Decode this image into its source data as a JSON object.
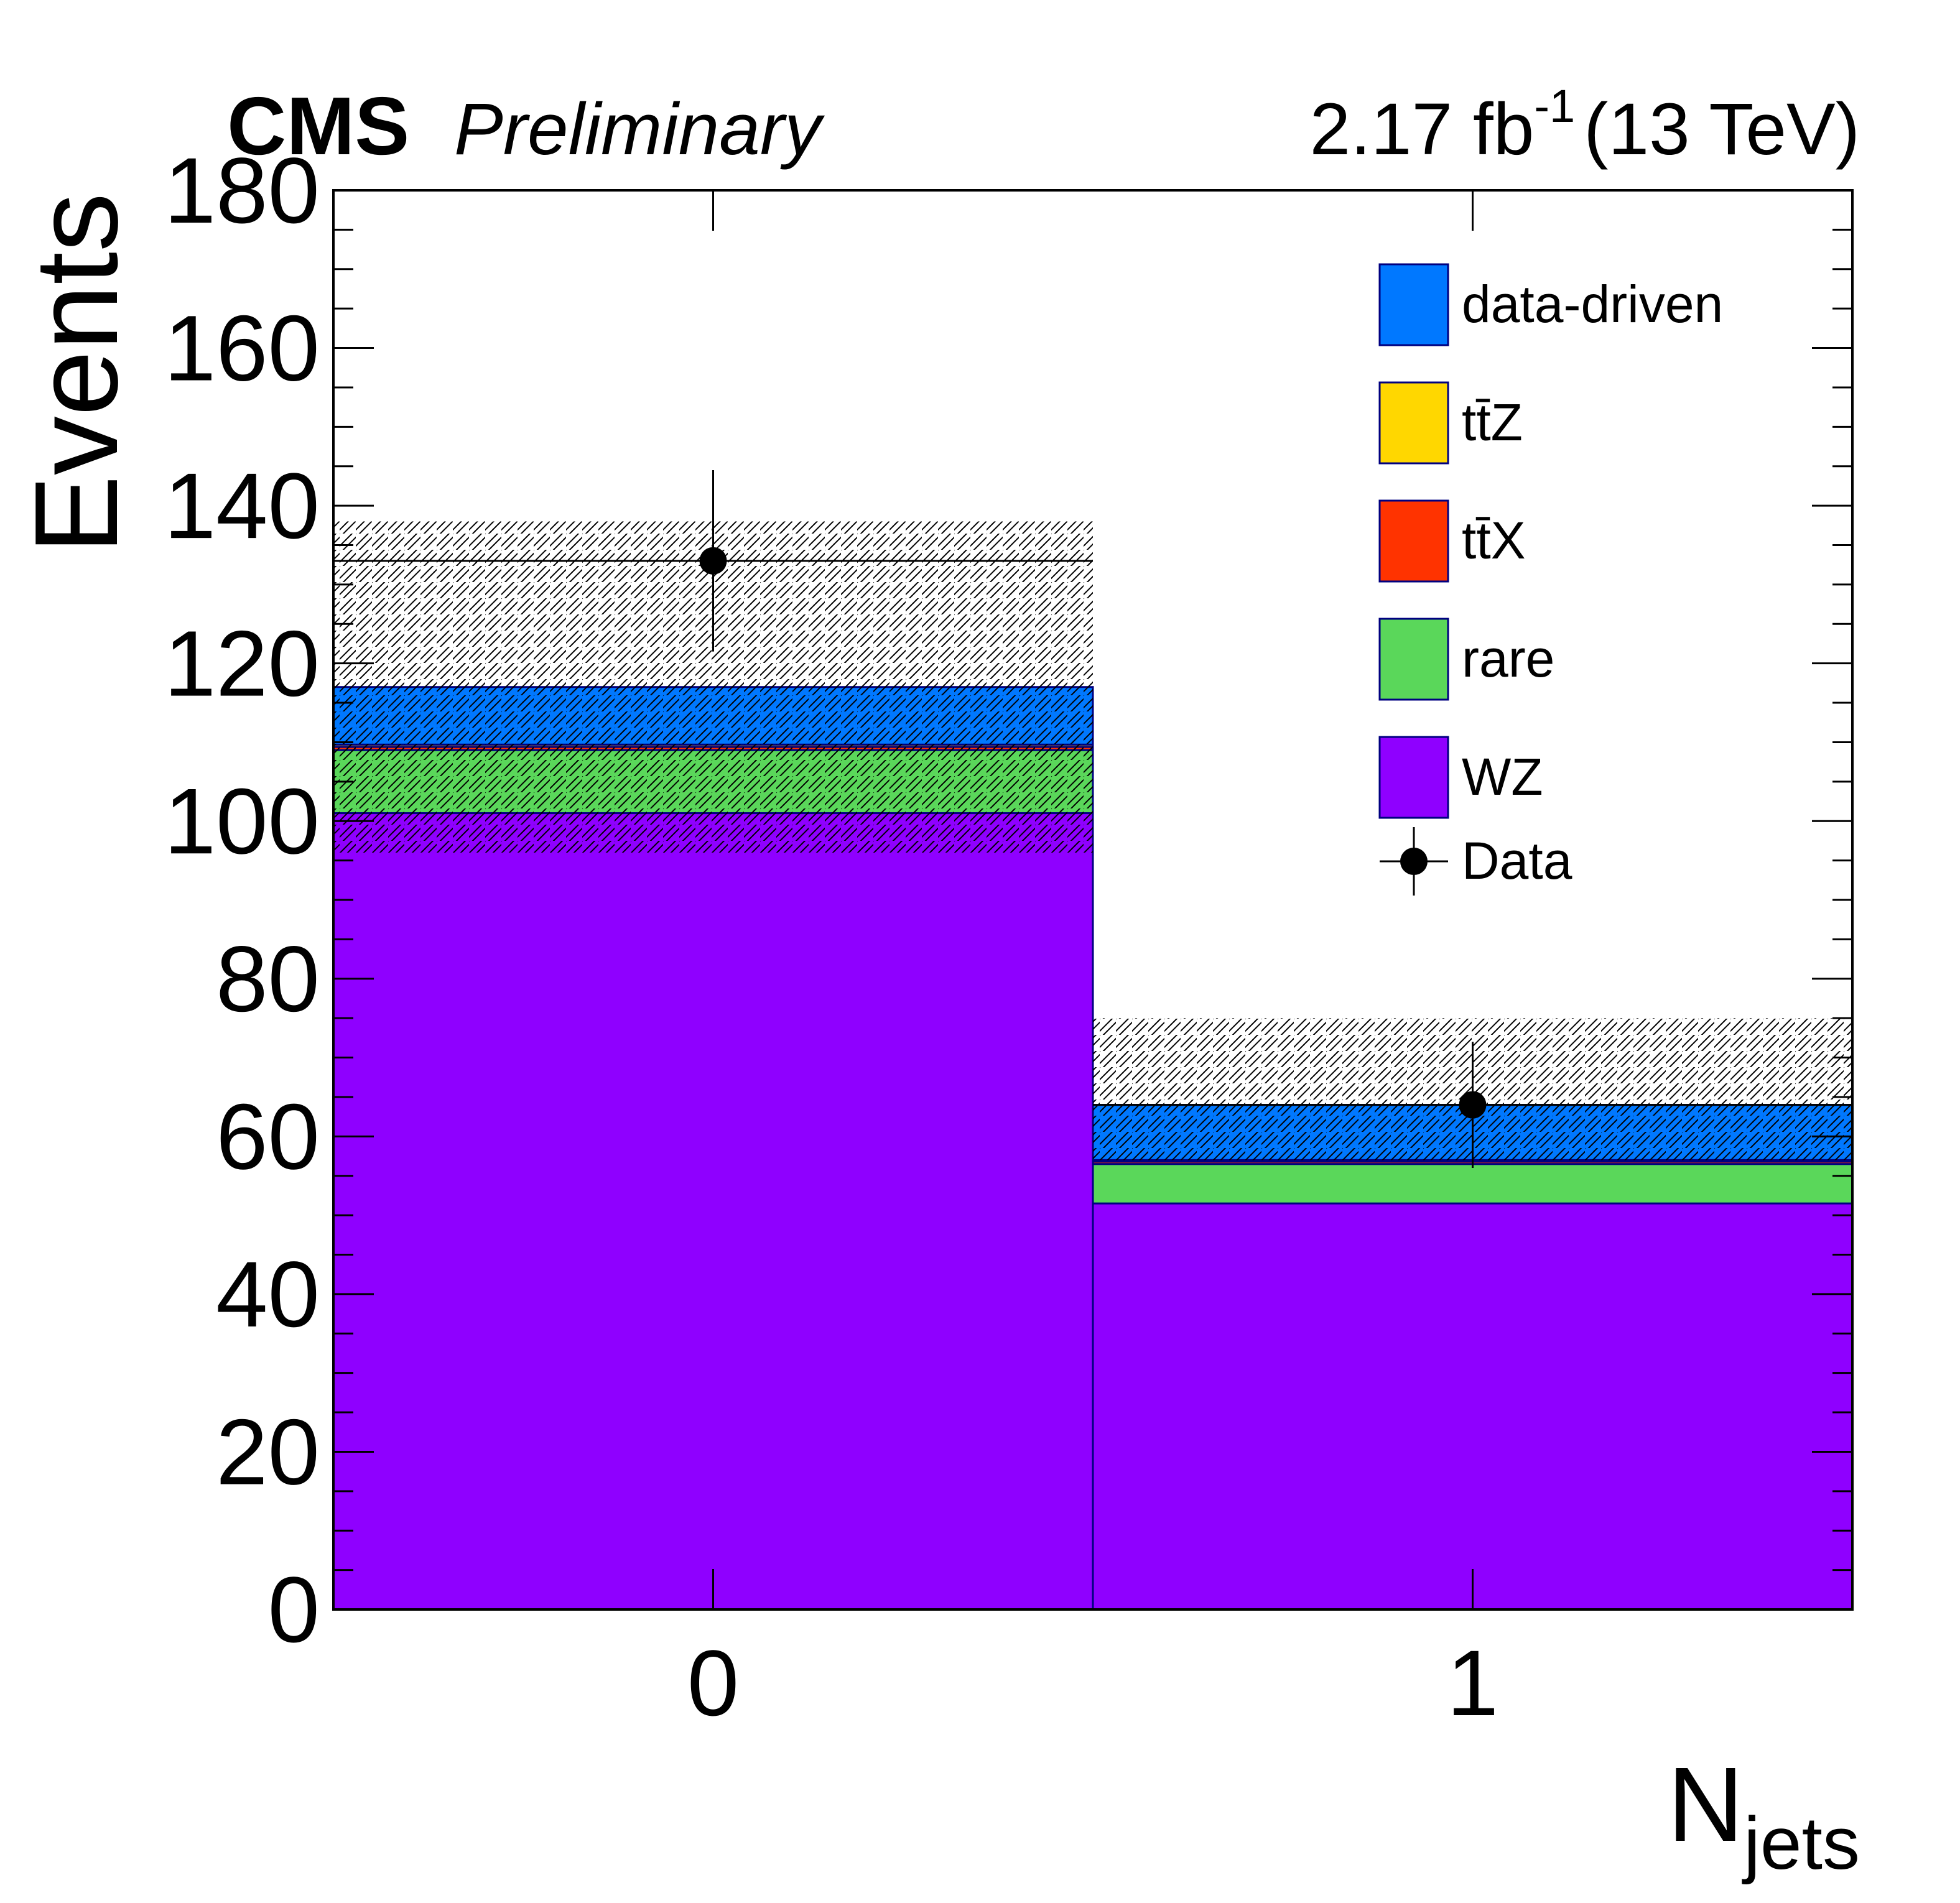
{
  "header": {
    "experiment": "CMS",
    "status": "Preliminary",
    "lumi_value": "2.17 fb",
    "lumi_exp": "-1",
    "energy": "(13 TeV)"
  },
  "chart_data": {
    "type": "bar",
    "stacked": true,
    "categories": [
      "0",
      "1"
    ],
    "bin_edges": [
      -0.5,
      0.5,
      1.5
    ],
    "x": [
      0,
      1
    ],
    "xlabel": "N",
    "xlabel_sub": "jets",
    "ylabel": "Events",
    "ylim": [
      0,
      180
    ],
    "yticks": [
      0,
      20,
      40,
      60,
      80,
      100,
      120,
      140,
      160,
      180
    ],
    "xticks": [
      0,
      1
    ],
    "series": [
      {
        "name": "WZ",
        "color": "#8f00ff",
        "values": [
          101,
          51.5
        ]
      },
      {
        "name": "rare",
        "color": "#5ad75a",
        "values": [
          8,
          5
        ]
      },
      {
        "name": "tt̄X",
        "color": "#ff3300",
        "values": [
          0.4,
          0.3
        ]
      },
      {
        "name": "tt̄Z",
        "color": "#ffd700",
        "values": [
          0.3,
          0.2
        ]
      },
      {
        "name": "data-driven",
        "color": "#0078ff",
        "values": [
          7.3,
          7.0
        ]
      }
    ],
    "uncertainty": {
      "low": [
        96,
        57
      ],
      "high": [
        138,
        75
      ]
    },
    "data": {
      "name": "Data",
      "values": [
        133,
        64
      ],
      "err_up": [
        11.5,
        8
      ],
      "err_down": [
        11.5,
        8
      ]
    },
    "legend": {
      "position": "top-right",
      "entries": [
        {
          "label": "data-driven",
          "color": "#0078ff",
          "kind": "box"
        },
        {
          "label": "tt̄Z",
          "color": "#ffd700",
          "kind": "box"
        },
        {
          "label": "tt̄X",
          "color": "#ff3300",
          "kind": "box"
        },
        {
          "label": "rare",
          "color": "#5ad75a",
          "kind": "box"
        },
        {
          "label": "WZ",
          "color": "#8f00ff",
          "kind": "box"
        },
        {
          "label": "Data",
          "color": "#000000",
          "kind": "marker"
        }
      ]
    }
  }
}
